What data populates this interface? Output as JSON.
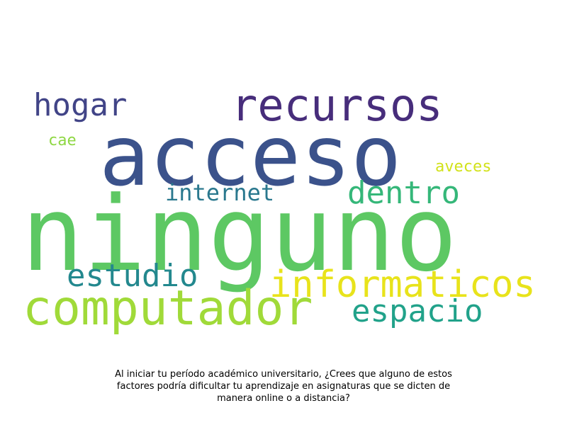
{
  "word_cloud": {
    "words": [
      {
        "key": "ninguno",
        "text": "ninguno",
        "color": "#5dc863"
      },
      {
        "key": "acceso",
        "text": "acceso",
        "color": "#3b528b"
      },
      {
        "key": "recursos",
        "text": "recursos",
        "color": "#472d7b"
      },
      {
        "key": "computador",
        "text": "computador",
        "color": "#a0da39"
      },
      {
        "key": "informaticos",
        "text": "informaticos",
        "color": "#e8e31b"
      },
      {
        "key": "estudio",
        "text": "estudio",
        "color": "#23888e"
      },
      {
        "key": "espacio",
        "text": "espacio",
        "color": "#21a28a"
      },
      {
        "key": "dentro",
        "text": "dentro",
        "color": "#35b779"
      },
      {
        "key": "hogar",
        "text": "hogar",
        "color": "#414487"
      },
      {
        "key": "internet",
        "text": "internet",
        "color": "#2a788e"
      },
      {
        "key": "aveces",
        "text": "aveces",
        "color": "#d2e21b"
      },
      {
        "key": "cae",
        "text": "cae",
        "color": "#8fd744"
      }
    ]
  },
  "caption": "Al iniciar tu período académico universitario, ¿Crees que alguno de estos factores podría dificultar tu aprendizaje en asignaturas que se dicten de manera online o a distancia?"
}
